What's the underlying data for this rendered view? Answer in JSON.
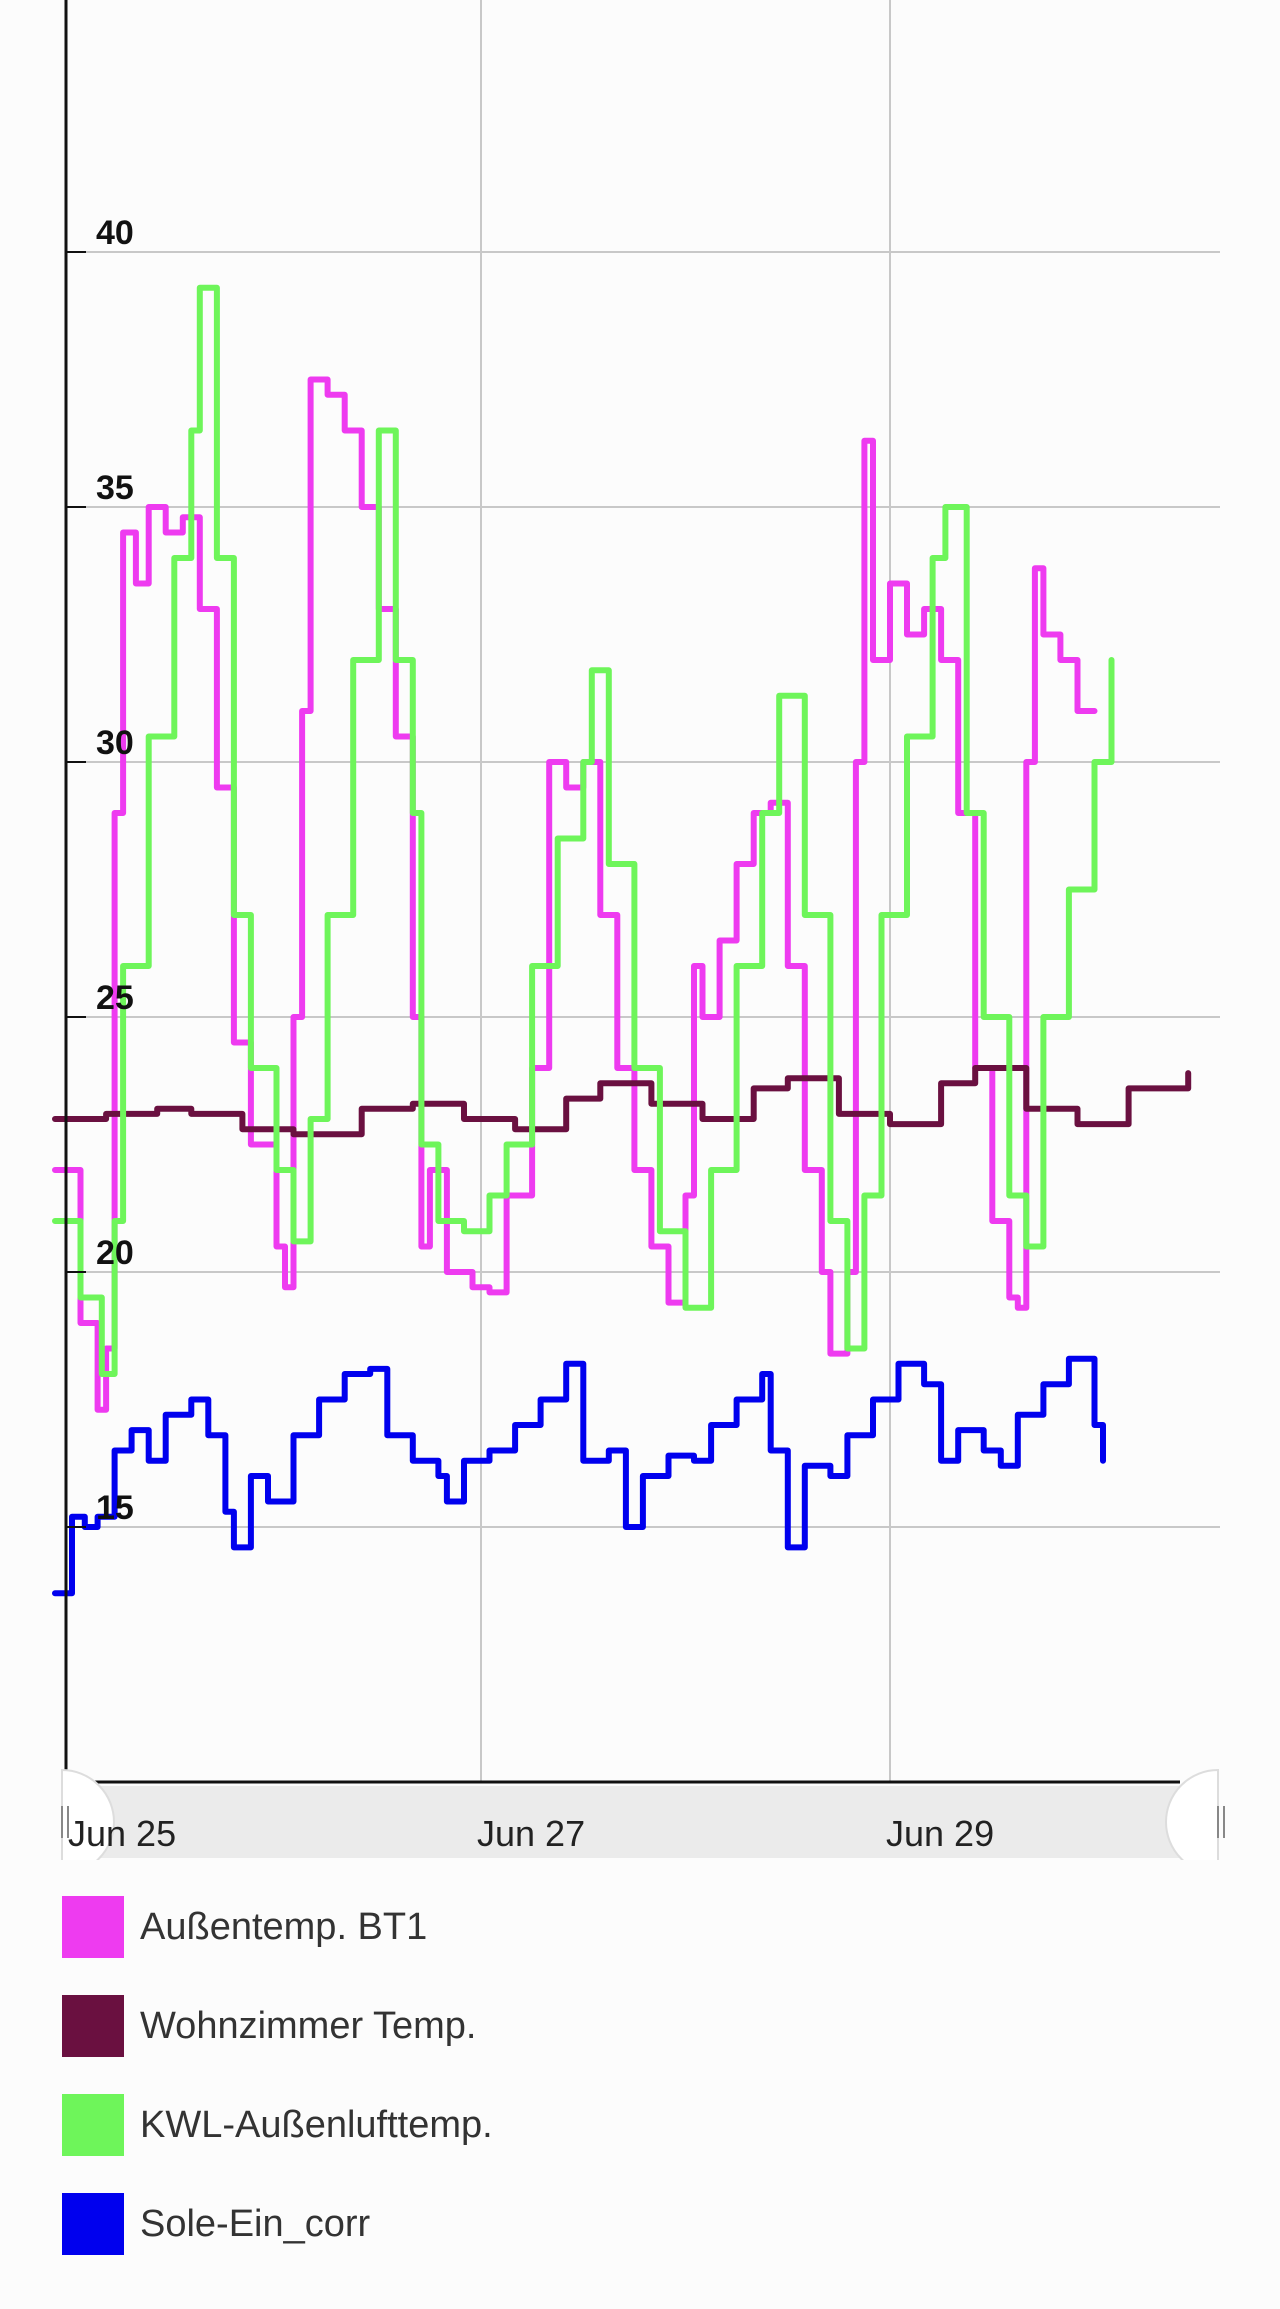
{
  "colors": {
    "background": "#fcfcfc",
    "grid": "#c8c8c8",
    "axis": "#111111",
    "scrollbar_track": "#ebebeb"
  },
  "scrollbar": {
    "left_handle_icon": "drag-handle-icon",
    "right_handle_icon": "drag-handle-icon"
  },
  "chart_data": {
    "type": "line",
    "title": "",
    "xlabel": "",
    "ylabel": "",
    "x_ticks": [
      "Jun 25",
      "Jun 27",
      "Jun 29"
    ],
    "x_range": [
      "2024-06-24T22:00",
      "2024-06-30T11:30"
    ],
    "y_ticks": [
      15,
      20,
      25,
      30,
      35,
      40
    ],
    "ylim": [
      10,
      45
    ],
    "grid": true,
    "legend_position": "bottom",
    "series": [
      {
        "name": "Außentemp. BT1",
        "color": "#ee3bf0",
        "points": [
          [
            "2024-06-24T22:00",
            22.0
          ],
          [
            "2024-06-25T01:00",
            19.0
          ],
          [
            "2024-06-25T03:00",
            17.3
          ],
          [
            "2024-06-25T04:00",
            18.5
          ],
          [
            "2024-06-25T05:00",
            29.0
          ],
          [
            "2024-06-25T06:00",
            34.5
          ],
          [
            "2024-06-25T07:30",
            33.5
          ],
          [
            "2024-06-25T09:00",
            35.0
          ],
          [
            "2024-06-25T11:00",
            34.5
          ],
          [
            "2024-06-25T13:00",
            34.8
          ],
          [
            "2024-06-25T15:00",
            33.0
          ],
          [
            "2024-06-25T17:00",
            29.5
          ],
          [
            "2024-06-25T19:00",
            24.5
          ],
          [
            "2024-06-25T21:00",
            22.5
          ],
          [
            "2024-06-26T00:00",
            20.5
          ],
          [
            "2024-06-26T01:00",
            19.7
          ],
          [
            "2024-06-26T02:00",
            25.0
          ],
          [
            "2024-06-26T03:00",
            31.0
          ],
          [
            "2024-06-26T04:00",
            37.5
          ],
          [
            "2024-06-26T06:00",
            37.2
          ],
          [
            "2024-06-26T08:00",
            36.5
          ],
          [
            "2024-06-26T10:00",
            35.0
          ],
          [
            "2024-06-26T12:00",
            33.0
          ],
          [
            "2024-06-26T14:00",
            30.5
          ],
          [
            "2024-06-26T16:00",
            25.0
          ],
          [
            "2024-06-26T17:00",
            20.5
          ],
          [
            "2024-06-26T18:00",
            22.0
          ],
          [
            "2024-06-26T20:00",
            20.0
          ],
          [
            "2024-06-26T23:00",
            19.7
          ],
          [
            "2024-06-27T01:00",
            19.6
          ],
          [
            "2024-06-27T03:00",
            21.5
          ],
          [
            "2024-06-27T06:00",
            24.0
          ],
          [
            "2024-06-27T08:00",
            30.0
          ],
          [
            "2024-06-27T10:00",
            29.5
          ],
          [
            "2024-06-27T12:00",
            30.0
          ],
          [
            "2024-06-27T14:00",
            27.0
          ],
          [
            "2024-06-27T16:00",
            24.0
          ],
          [
            "2024-06-27T18:00",
            22.0
          ],
          [
            "2024-06-27T20:00",
            20.5
          ],
          [
            "2024-06-27T22:00",
            19.4
          ],
          [
            "2024-06-28T00:00",
            21.5
          ],
          [
            "2024-06-28T01:00",
            26.0
          ],
          [
            "2024-06-28T02:00",
            25.0
          ],
          [
            "2024-06-28T04:00",
            26.5
          ],
          [
            "2024-06-28T06:00",
            28.0
          ],
          [
            "2024-06-28T08:00",
            29.0
          ],
          [
            "2024-06-28T10:00",
            29.2
          ],
          [
            "2024-06-28T12:00",
            26.0
          ],
          [
            "2024-06-28T14:00",
            22.0
          ],
          [
            "2024-06-28T16:00",
            20.0
          ],
          [
            "2024-06-28T17:00",
            18.4
          ],
          [
            "2024-06-28T19:00",
            20.0
          ],
          [
            "2024-06-28T20:00",
            30.0
          ],
          [
            "2024-06-28T21:00",
            36.3
          ],
          [
            "2024-06-28T22:00",
            32.0
          ],
          [
            "2024-06-29T00:00",
            33.5
          ],
          [
            "2024-06-29T02:00",
            32.5
          ],
          [
            "2024-06-29T04:00",
            33.0
          ],
          [
            "2024-06-29T06:00",
            32.0
          ],
          [
            "2024-06-29T08:00",
            29.0
          ],
          [
            "2024-06-29T10:00",
            24.0
          ],
          [
            "2024-06-29T12:00",
            21.0
          ],
          [
            "2024-06-29T14:00",
            19.5
          ],
          [
            "2024-06-29T15:00",
            19.3
          ],
          [
            "2024-06-29T16:00",
            30.0
          ],
          [
            "2024-06-29T17:00",
            33.8
          ],
          [
            "2024-06-29T18:00",
            32.5
          ],
          [
            "2024-06-29T20:00",
            32.0
          ],
          [
            "2024-06-29T22:00",
            31.0
          ],
          [
            "2024-06-30T00:00",
            31.0
          ]
        ]
      },
      {
        "name": "Wohnzimmer Temp.",
        "color": "#6a1040",
        "points": [
          [
            "2024-06-24T22:00",
            23.0
          ],
          [
            "2024-06-25T04:00",
            23.1
          ],
          [
            "2024-06-25T10:00",
            23.2
          ],
          [
            "2024-06-25T14:00",
            23.1
          ],
          [
            "2024-06-25T20:00",
            22.8
          ],
          [
            "2024-06-26T02:00",
            22.7
          ],
          [
            "2024-06-26T10:00",
            23.2
          ],
          [
            "2024-06-26T16:00",
            23.3
          ],
          [
            "2024-06-26T22:00",
            23.0
          ],
          [
            "2024-06-27T04:00",
            22.8
          ],
          [
            "2024-06-27T10:00",
            23.4
          ],
          [
            "2024-06-27T14:00",
            23.7
          ],
          [
            "2024-06-27T20:00",
            23.3
          ],
          [
            "2024-06-28T02:00",
            23.0
          ],
          [
            "2024-06-28T08:00",
            23.6
          ],
          [
            "2024-06-28T12:00",
            23.8
          ],
          [
            "2024-06-28T18:00",
            23.1
          ],
          [
            "2024-06-29T00:00",
            22.9
          ],
          [
            "2024-06-29T06:00",
            23.7
          ],
          [
            "2024-06-29T10:00",
            24.0
          ],
          [
            "2024-06-29T16:00",
            23.2
          ],
          [
            "2024-06-29T22:00",
            22.9
          ],
          [
            "2024-06-30T04:00",
            23.6
          ],
          [
            "2024-06-30T11:00",
            23.9
          ]
        ]
      },
      {
        "name": "KWL-Außenlufttemp.",
        "color": "#6ef55a",
        "points": [
          [
            "2024-06-24T22:00",
            21.0
          ],
          [
            "2024-06-25T01:00",
            19.5
          ],
          [
            "2024-06-25T03:30",
            18.0
          ],
          [
            "2024-06-25T05:00",
            21.0
          ],
          [
            "2024-06-25T06:00",
            26.0
          ],
          [
            "2024-06-25T09:00",
            30.5
          ],
          [
            "2024-06-25T12:00",
            34.0
          ],
          [
            "2024-06-25T14:00",
            36.5
          ],
          [
            "2024-06-25T15:00",
            39.3
          ],
          [
            "2024-06-25T17:00",
            34.0
          ],
          [
            "2024-06-25T19:00",
            27.0
          ],
          [
            "2024-06-25T21:00",
            24.0
          ],
          [
            "2024-06-26T00:00",
            22.0
          ],
          [
            "2024-06-26T02:00",
            20.6
          ],
          [
            "2024-06-26T04:00",
            23.0
          ],
          [
            "2024-06-26T06:00",
            27.0
          ],
          [
            "2024-06-26T09:00",
            32.0
          ],
          [
            "2024-06-26T12:00",
            36.5
          ],
          [
            "2024-06-26T14:00",
            32.0
          ],
          [
            "2024-06-26T16:00",
            29.0
          ],
          [
            "2024-06-26T17:00",
            22.5
          ],
          [
            "2024-06-26T19:00",
            21.0
          ],
          [
            "2024-06-26T22:00",
            20.8
          ],
          [
            "2024-06-27T01:00",
            21.5
          ],
          [
            "2024-06-27T03:00",
            22.5
          ],
          [
            "2024-06-27T06:00",
            26.0
          ],
          [
            "2024-06-27T09:00",
            28.5
          ],
          [
            "2024-06-27T12:00",
            30.0
          ],
          [
            "2024-06-27T13:00",
            31.8
          ],
          [
            "2024-06-27T15:00",
            28.0
          ],
          [
            "2024-06-27T18:00",
            24.0
          ],
          [
            "2024-06-27T21:00",
            20.8
          ],
          [
            "2024-06-28T00:00",
            19.3
          ],
          [
            "2024-06-28T03:00",
            22.0
          ],
          [
            "2024-06-28T06:00",
            26.0
          ],
          [
            "2024-06-28T09:00",
            29.0
          ],
          [
            "2024-06-28T11:00",
            31.3
          ],
          [
            "2024-06-28T14:00",
            27.0
          ],
          [
            "2024-06-28T17:00",
            21.0
          ],
          [
            "2024-06-28T19:00",
            18.5
          ],
          [
            "2024-06-28T21:00",
            21.5
          ],
          [
            "2024-06-28T23:00",
            27.0
          ],
          [
            "2024-06-29T02:00",
            30.5
          ],
          [
            "2024-06-29T05:00",
            34.0
          ],
          [
            "2024-06-29T06:30",
            35.0
          ],
          [
            "2024-06-29T09:00",
            29.0
          ],
          [
            "2024-06-29T11:00",
            25.0
          ],
          [
            "2024-06-29T14:00",
            21.5
          ],
          [
            "2024-06-29T16:00",
            20.5
          ],
          [
            "2024-06-29T18:00",
            25.0
          ],
          [
            "2024-06-29T21:00",
            27.5
          ],
          [
            "2024-06-30T00:00",
            30.0
          ],
          [
            "2024-06-30T02:00",
            32.0
          ]
        ]
      },
      {
        "name": "Sole-Ein_corr",
        "color": "#0000ee",
        "points": [
          [
            "2024-06-24T22:00",
            13.7
          ],
          [
            "2024-06-25T00:00",
            15.2
          ],
          [
            "2024-06-25T01:30",
            15.0
          ],
          [
            "2024-06-25T03:00",
            15.2
          ],
          [
            "2024-06-25T05:00",
            16.5
          ],
          [
            "2024-06-25T07:00",
            16.9
          ],
          [
            "2024-06-25T09:00",
            16.3
          ],
          [
            "2024-06-25T11:00",
            17.2
          ],
          [
            "2024-06-25T14:00",
            17.5
          ],
          [
            "2024-06-25T16:00",
            16.8
          ],
          [
            "2024-06-25T18:00",
            15.3
          ],
          [
            "2024-06-25T19:00",
            14.6
          ],
          [
            "2024-06-25T21:00",
            16.0
          ],
          [
            "2024-06-25T23:00",
            15.5
          ],
          [
            "2024-06-26T02:00",
            16.8
          ],
          [
            "2024-06-26T05:00",
            17.5
          ],
          [
            "2024-06-26T08:00",
            18.0
          ],
          [
            "2024-06-26T11:00",
            18.1
          ],
          [
            "2024-06-26T13:00",
            16.8
          ],
          [
            "2024-06-26T16:00",
            16.3
          ],
          [
            "2024-06-26T19:00",
            16.0
          ],
          [
            "2024-06-26T20:00",
            15.5
          ],
          [
            "2024-06-26T22:00",
            16.3
          ],
          [
            "2024-06-27T01:00",
            16.5
          ],
          [
            "2024-06-27T04:00",
            17.0
          ],
          [
            "2024-06-27T07:00",
            17.5
          ],
          [
            "2024-06-27T10:00",
            18.2
          ],
          [
            "2024-06-27T12:00",
            16.3
          ],
          [
            "2024-06-27T15:00",
            16.5
          ],
          [
            "2024-06-27T17:00",
            15.0
          ],
          [
            "2024-06-27T19:00",
            16.0
          ],
          [
            "2024-06-27T22:00",
            16.4
          ],
          [
            "2024-06-28T01:00",
            16.3
          ],
          [
            "2024-06-28T03:00",
            17.0
          ],
          [
            "2024-06-28T06:00",
            17.5
          ],
          [
            "2024-06-28T09:00",
            18.0
          ],
          [
            "2024-06-28T10:00",
            16.5
          ],
          [
            "2024-06-28T12:00",
            14.6
          ],
          [
            "2024-06-28T14:00",
            16.2
          ],
          [
            "2024-06-28T17:00",
            16.0
          ],
          [
            "2024-06-28T19:00",
            16.8
          ],
          [
            "2024-06-28T22:00",
            17.5
          ],
          [
            "2024-06-29T01:00",
            18.2
          ],
          [
            "2024-06-29T04:00",
            17.8
          ],
          [
            "2024-06-29T06:00",
            16.3
          ],
          [
            "2024-06-29T08:00",
            16.9
          ],
          [
            "2024-06-29T11:00",
            16.5
          ],
          [
            "2024-06-29T13:00",
            16.2
          ],
          [
            "2024-06-29T15:00",
            17.2
          ],
          [
            "2024-06-29T18:00",
            17.8
          ],
          [
            "2024-06-29T21:00",
            18.3
          ],
          [
            "2024-06-30T00:00",
            17.0
          ],
          [
            "2024-06-30T01:00",
            16.3
          ]
        ]
      }
    ]
  }
}
